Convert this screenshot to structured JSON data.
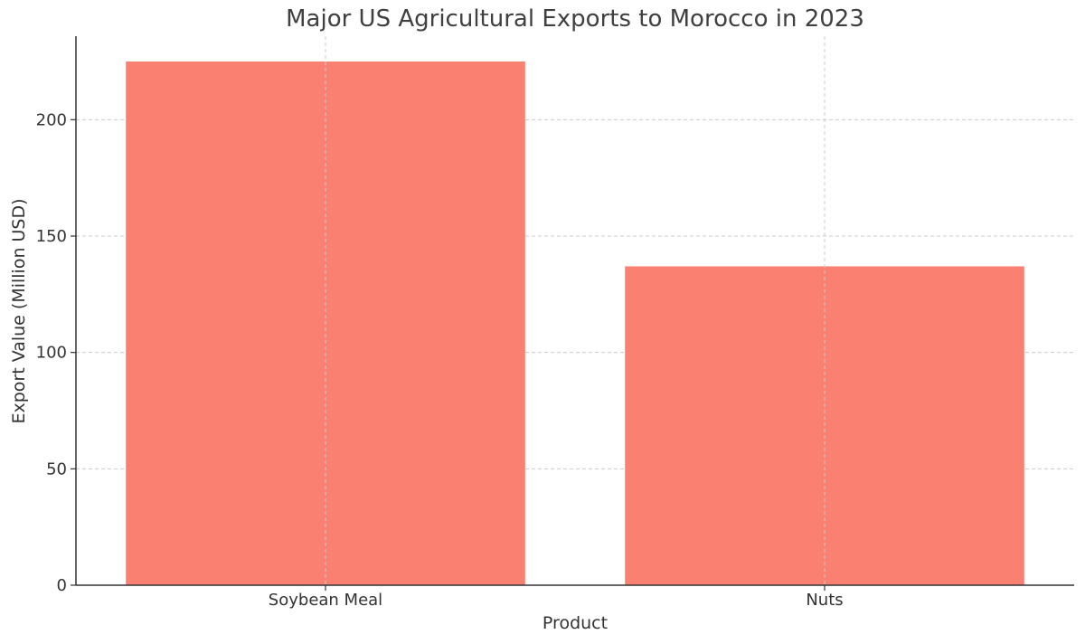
{
  "chart_data": {
    "type": "bar",
    "title": "Major US Agricultural Exports to Morocco in 2023",
    "xlabel": "Product",
    "ylabel": "Export Value (Million USD)",
    "categories": [
      "Soybean Meal",
      "Nuts"
    ],
    "values": [
      225,
      137
    ],
    "ylim": [
      0,
      225
    ],
    "yticks": [
      0,
      50,
      100,
      150,
      200
    ],
    "grid": true,
    "bar_color": "#fa8072"
  }
}
